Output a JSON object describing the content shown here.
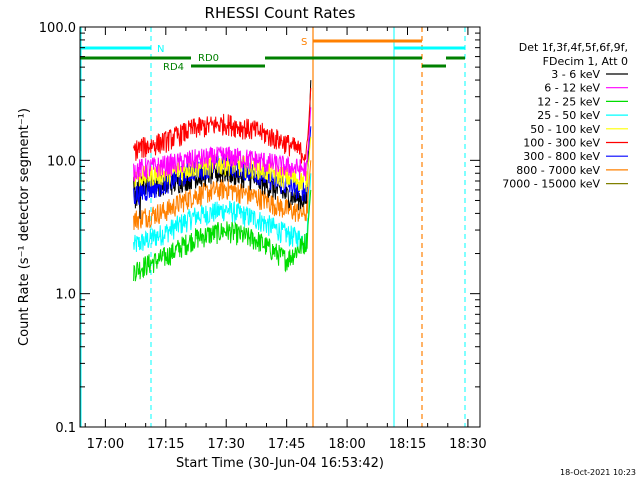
{
  "chart_data": {
    "type": "line",
    "title": "RHESSI Count Rates",
    "xlabel": "Start Time (30-Jun-04 16:53:42)",
    "ylabel": "Count Rate (s⁻¹ detector segment⁻¹)",
    "yscale": "log",
    "ylim": [
      0.1,
      100.0
    ],
    "xlim": [
      "16:53:42",
      "18:33:00"
    ],
    "x_ticks": [
      "17:00",
      "17:15",
      "17:30",
      "17:45",
      "18:00",
      "18:15",
      "18:30"
    ],
    "y_ticks": [
      "0.1",
      "1.0",
      "10.0",
      "100.0"
    ],
    "grid": false,
    "legend_position": "right",
    "legend_header": [
      "Det 1f,3f,4f,5f,6f,9f,",
      "FDecim 1, Att 0"
    ],
    "timestamp": "18-Oct-2021 10:23",
    "series": [
      {
        "name": "3 - 6 keV",
        "color": "#000000",
        "x": [
          "17:07",
          "17:15",
          "17:22",
          "17:30",
          "17:38",
          "17:45",
          "17:50",
          "17:51"
        ],
        "y": [
          7.0,
          6.5,
          7.5,
          8.2,
          7.0,
          5.5,
          5.0,
          40.0
        ]
      },
      {
        "name": "6 - 12 keV",
        "color": "#ff00ff",
        "x": [
          "17:07",
          "17:15",
          "17:22",
          "17:30",
          "17:38",
          "17:45",
          "17:50",
          "17:51"
        ],
        "y": [
          8.5,
          9.2,
          10.2,
          10.8,
          10.0,
          9.0,
          8.5,
          25.0
        ]
      },
      {
        "name": "12 - 25 keV",
        "color": "#00dd00",
        "x": [
          "17:07",
          "17:15",
          "17:22",
          "17:30",
          "17:38",
          "17:45",
          "17:50",
          "17:51"
        ],
        "y": [
          1.5,
          1.9,
          2.6,
          3.0,
          2.5,
          1.8,
          2.5,
          6.0
        ]
      },
      {
        "name": "25 - 50 keV",
        "color": "#00ffff",
        "x": [
          "17:07",
          "17:15",
          "17:22",
          "17:30",
          "17:38",
          "17:45",
          "17:50",
          "17:51"
        ],
        "y": [
          2.3,
          2.9,
          3.8,
          4.3,
          3.6,
          2.8,
          2.5,
          8.0
        ]
      },
      {
        "name": "50 - 100 keV",
        "color": "#ffff00",
        "x": [
          "17:07",
          "17:15",
          "17:22",
          "17:30",
          "17:38",
          "17:45",
          "17:50",
          "17:51"
        ],
        "y": [
          7.5,
          8.0,
          9.0,
          9.5,
          8.8,
          7.5,
          7.0,
          15.0
        ]
      },
      {
        "name": "100 - 300 keV",
        "color": "#ff0000",
        "x": [
          "17:07",
          "17:15",
          "17:22",
          "17:30",
          "17:38",
          "17:45",
          "17:50",
          "17:51"
        ],
        "y": [
          12.0,
          14.0,
          17.5,
          19.0,
          16.5,
          13.5,
          11.0,
          35.0
        ]
      },
      {
        "name": "300 - 800 keV",
        "color": "#0000ff",
        "x": [
          "17:07",
          "17:15",
          "17:22",
          "17:30",
          "17:38",
          "17:45",
          "17:50",
          "17:51"
        ],
        "y": [
          5.5,
          6.8,
          8.5,
          9.5,
          8.0,
          6.5,
          6.0,
          18.0
        ]
      },
      {
        "name": "800 - 7000 keV",
        "color": "#ff8000",
        "x": [
          "17:07",
          "17:15",
          "17:22",
          "17:30",
          "17:38",
          "17:45",
          "17:50",
          "17:51"
        ],
        "y": [
          3.6,
          4.2,
          5.5,
          6.2,
          5.3,
          4.3,
          4.0,
          10.0
        ]
      },
      {
        "name": "7000 - 15000 keV",
        "color": "#808000",
        "x": [],
        "y": []
      }
    ],
    "annotations": [
      {
        "label": "N",
        "color": "#00ffff"
      },
      {
        "label": "S",
        "color": "#ff8000"
      },
      {
        "label": "RD0",
        "color": "#008000"
      },
      {
        "label": "RD4",
        "color": "#008000"
      }
    ]
  }
}
